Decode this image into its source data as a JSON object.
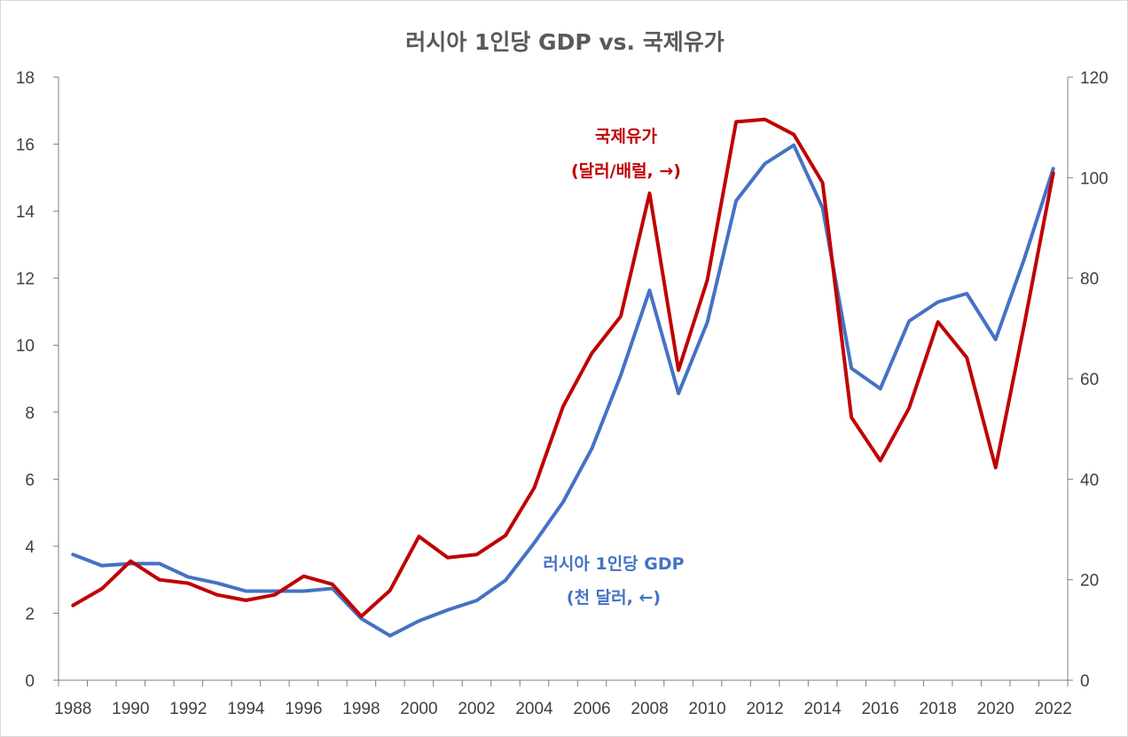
{
  "chart_data": {
    "type": "line",
    "title": "러시아 1인당 GDP vs. 국제유가",
    "x": [
      1988,
      1989,
      1990,
      1991,
      1992,
      1993,
      1994,
      1995,
      1996,
      1997,
      1998,
      1999,
      2000,
      2001,
      2002,
      2003,
      2004,
      2005,
      2006,
      2007,
      2008,
      2009,
      2010,
      2011,
      2012,
      2013,
      2014,
      2015,
      2016,
      2017,
      2018,
      2019,
      2020,
      2021,
      2022
    ],
    "x_tick_labels": [
      "1988",
      "1990",
      "1992",
      "1994",
      "1996",
      "1998",
      "2000",
      "2002",
      "2004",
      "2006",
      "2008",
      "2010",
      "2012",
      "2014",
      "2016",
      "2018",
      "2020",
      "2022"
    ],
    "y_left": {
      "min": 0,
      "max": 18,
      "ticks": [
        "0",
        "2",
        "4",
        "6",
        "8",
        "10",
        "12",
        "14",
        "16",
        "18"
      ]
    },
    "y_right": {
      "min": 0,
      "max": 120,
      "ticks": [
        "0",
        "20",
        "40",
        "60",
        "80",
        "100",
        "120"
      ]
    },
    "series": [
      {
        "name": "러시아 1인당 GDP",
        "axis": "left",
        "color": "#4472c4",
        "label_line1": "러시아 1인당 GDP",
        "label_line2": "(천 달러, ←)",
        "values": [
          3.75,
          3.42,
          3.48,
          3.48,
          3.08,
          2.9,
          2.66,
          2.66,
          2.66,
          2.74,
          1.84,
          1.33,
          1.77,
          2.1,
          2.38,
          2.98,
          4.1,
          5.32,
          6.92,
          9.1,
          11.64,
          8.56,
          10.68,
          14.31,
          15.42,
          15.97,
          14.1,
          9.31,
          8.7,
          10.72,
          11.29,
          11.54,
          10.17,
          12.59,
          15.27
        ]
      },
      {
        "name": "국제유가",
        "axis": "right",
        "color": "#c00000",
        "label_line1": "국제유가",
        "label_line2": "(달러/배럴, →)",
        "values": [
          14.9,
          18.2,
          23.7,
          20.0,
          19.3,
          17.0,
          15.9,
          17.0,
          20.7,
          19.1,
          12.7,
          17.9,
          28.6,
          24.4,
          25.0,
          28.8,
          38.3,
          54.5,
          65.1,
          72.4,
          96.9,
          61.7,
          79.6,
          111.1,
          111.6,
          108.6,
          99.0,
          52.3,
          43.7,
          54.2,
          71.3,
          64.2,
          42.3,
          70.9,
          100.9
        ]
      }
    ]
  }
}
